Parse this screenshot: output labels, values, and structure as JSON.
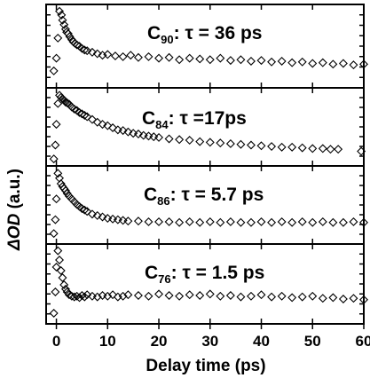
{
  "chart_data": {
    "type": "scatter",
    "xlabel": "Delay time (ps)",
    "ylabel_main": "ΔOD",
    "ylabel_unit": " (a.u.)",
    "xlim": [
      -2,
      60
    ],
    "xticks": [
      0,
      10,
      20,
      30,
      40,
      50,
      60
    ],
    "xtick_labels": [
      "0",
      "10",
      "20",
      "30",
      "40",
      "50",
      "60"
    ],
    "panels": [
      {
        "label_prefix": "C",
        "label_sub": "90",
        "label_suffix": ": τ = 36 ps",
        "tau": 36,
        "x": [
          -0.5,
          0,
          0.3,
          0.6,
          1.0,
          1.2,
          1.5,
          1.8,
          2.0,
          2.3,
          2.6,
          3.0,
          3.3,
          3.6,
          4.0,
          4.5,
          5.0,
          5.5,
          6.0,
          7.0,
          8.0,
          9.0,
          10.0,
          11.5,
          13.0,
          14.5,
          16.0,
          18.0,
          20.0,
          22.0,
          24.0,
          26.0,
          28.0,
          30.0,
          32.0,
          34.0,
          36.0,
          38.0,
          40.0,
          42.0,
          44.0,
          46.0,
          48.0,
          50.0,
          52.0,
          54.0,
          56.0,
          58.0,
          60.0
        ],
        "y": [
          0.18,
          0.35,
          0.62,
          0.98,
          0.93,
          0.86,
          0.8,
          0.74,
          0.7,
          0.68,
          0.64,
          0.6,
          0.57,
          0.55,
          0.53,
          0.51,
          0.48,
          0.46,
          0.45,
          0.43,
          0.41,
          0.39,
          0.4,
          0.38,
          0.37,
          0.39,
          0.36,
          0.37,
          0.35,
          0.36,
          0.33,
          0.35,
          0.34,
          0.33,
          0.35,
          0.32,
          0.33,
          0.31,
          0.32,
          0.3,
          0.31,
          0.29,
          0.3,
          0.28,
          0.29,
          0.27,
          0.28,
          0.26,
          0.27
        ]
      },
      {
        "label_prefix": "C",
        "label_sub": "84",
        "label_suffix": ": τ =17ps",
        "tau": 17,
        "x": [
          -0.5,
          -0.2,
          0,
          0.3,
          0.6,
          0.9,
          1.2,
          1.5,
          1.8,
          2.1,
          2.5,
          3.0,
          3.5,
          4.0,
          4.5,
          5.0,
          5.5,
          6.0,
          7.0,
          8.0,
          9.0,
          10.0,
          11.0,
          12.0,
          13.0,
          14.0,
          15.0,
          16.0,
          17.0,
          18.0,
          19.0,
          20.0,
          22.0,
          24.0,
          26.0,
          28.0,
          30.0,
          32.0,
          34.0,
          36.0,
          38.0,
          40.0,
          42.0,
          44.0,
          46.0,
          48.0,
          50.0,
          52.0,
          53.5,
          55.0,
          59.5
        ],
        "y": [
          0.05,
          0.25,
          0.55,
          0.85,
          0.97,
          0.94,
          0.92,
          0.9,
          0.87,
          0.86,
          0.84,
          0.8,
          0.77,
          0.75,
          0.72,
          0.7,
          0.68,
          0.66,
          0.62,
          0.58,
          0.55,
          0.53,
          0.5,
          0.47,
          0.46,
          0.44,
          0.42,
          0.41,
          0.39,
          0.38,
          0.37,
          0.36,
          0.34,
          0.33,
          0.32,
          0.3,
          0.29,
          0.28,
          0.27,
          0.26,
          0.25,
          0.24,
          0.23,
          0.22,
          0.22,
          0.21,
          0.2,
          0.2,
          0.19,
          0.19,
          0.16
        ]
      },
      {
        "label_prefix": "C",
        "label_sub": "86",
        "label_suffix": ": τ = 5.7 ps",
        "tau": 5.7,
        "x": [
          -0.5,
          -0.2,
          0,
          0.3,
          0.6,
          0.9,
          1.2,
          1.5,
          1.8,
          2.1,
          2.5,
          3.0,
          3.5,
          4.0,
          4.5,
          5.0,
          5.5,
          6.0,
          7.0,
          8.0,
          9.0,
          10.0,
          11.0,
          12.0,
          13.0,
          14.0,
          16.0,
          18.0,
          20.0,
          22.0,
          24.0,
          26.0,
          28.0,
          30.0,
          32.0,
          34.0,
          36.0,
          38.0,
          40.0,
          42.0,
          44.0,
          46.0,
          48.0,
          50.0,
          52.0,
          54.0,
          56.0,
          58.0,
          60.0
        ],
        "y": [
          0.1,
          0.3,
          0.6,
          0.97,
          0.9,
          0.82,
          0.78,
          0.75,
          0.72,
          0.68,
          0.64,
          0.6,
          0.56,
          0.52,
          0.49,
          0.46,
          0.44,
          0.42,
          0.38,
          0.36,
          0.34,
          0.32,
          0.31,
          0.3,
          0.29,
          0.28,
          0.28,
          0.27,
          0.27,
          0.27,
          0.26,
          0.27,
          0.26,
          0.27,
          0.26,
          0.27,
          0.26,
          0.26,
          0.27,
          0.26,
          0.27,
          0.26,
          0.27,
          0.26,
          0.27,
          0.26,
          0.26,
          0.27,
          0.26
        ]
      },
      {
        "label_prefix": "C",
        "label_sub": "76",
        "label_suffix": ": τ = 1.5 ps",
        "tau": 1.5,
        "x": [
          -0.5,
          -0.2,
          0,
          0.3,
          0.6,
          0.9,
          1.2,
          1.5,
          1.8,
          2.1,
          2.5,
          3.0,
          3.5,
          4.0,
          4.5,
          5.0,
          5.5,
          6.0,
          7.0,
          8.0,
          9.0,
          10.0,
          11.0,
          12.0,
          13.0,
          14.0,
          16.0,
          18.0,
          20.0,
          22.0,
          24.0,
          26.0,
          28.0,
          30.0,
          32.0,
          34.0,
          36.0,
          38.0,
          40.0,
          42.0,
          44.0,
          46.0,
          48.0,
          50.0,
          52.0,
          54.0,
          56.0,
          58.0,
          60.0
        ],
        "y": [
          0.1,
          0.4,
          0.75,
          0.98,
          0.85,
          0.7,
          0.6,
          0.5,
          0.44,
          0.4,
          0.36,
          0.34,
          0.33,
          0.34,
          0.32,
          0.35,
          0.33,
          0.36,
          0.34,
          0.33,
          0.35,
          0.34,
          0.36,
          0.33,
          0.34,
          0.36,
          0.35,
          0.34,
          0.37,
          0.35,
          0.34,
          0.36,
          0.35,
          0.37,
          0.34,
          0.35,
          0.33,
          0.34,
          0.36,
          0.33,
          0.34,
          0.32,
          0.33,
          0.34,
          0.31,
          0.32,
          0.3,
          0.31,
          0.29
        ]
      }
    ]
  }
}
